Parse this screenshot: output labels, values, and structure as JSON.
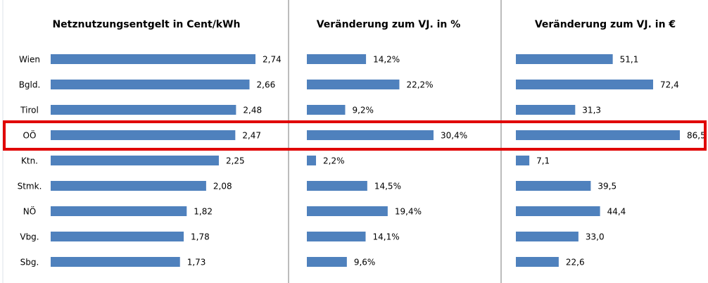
{
  "chart_data": [
    {
      "type": "barh",
      "title": "Netznutzungsentgelt in Cent/kWh",
      "color": "#4f81bd",
      "categories": [
        "Wien",
        "Bgld.",
        "Tirol",
        "OÖ",
        "Ktn.",
        "Stmk.",
        "NÖ",
        "Vbg.",
        "Sbg."
      ],
      "values": [
        2.74,
        2.66,
        2.48,
        2.47,
        2.25,
        2.08,
        1.82,
        1.78,
        1.73
      ],
      "value_labels": [
        "2,74",
        "2,66",
        "2,48",
        "2,47",
        "2,25",
        "2,08",
        "1,82",
        "1,78",
        "1,73"
      ]
    },
    {
      "type": "barh",
      "title": "Veränderung zum VJ. in %",
      "color": "#4f81bd",
      "values": [
        14.2,
        22.2,
        9.2,
        30.4,
        2.2,
        14.5,
        19.4,
        14.1,
        9.6
      ],
      "value_labels": [
        "14,2%",
        "22,2%",
        "9,2%",
        "30,4%",
        "2,2%",
        "14,5%",
        "19,4%",
        "14,1%",
        "9,6%"
      ]
    },
    {
      "type": "barh",
      "title": "Veränderung zum VJ. in €",
      "color": "#4f81bd",
      "values": [
        51.1,
        72.4,
        31.3,
        86.5,
        7.1,
        39.5,
        44.4,
        33.0,
        22.6
      ],
      "value_labels": [
        "51,1",
        "72,4",
        "31,3",
        "86,5",
        "7,1",
        "39,5",
        "44,4",
        "33,0",
        "22,6"
      ]
    }
  ]
}
